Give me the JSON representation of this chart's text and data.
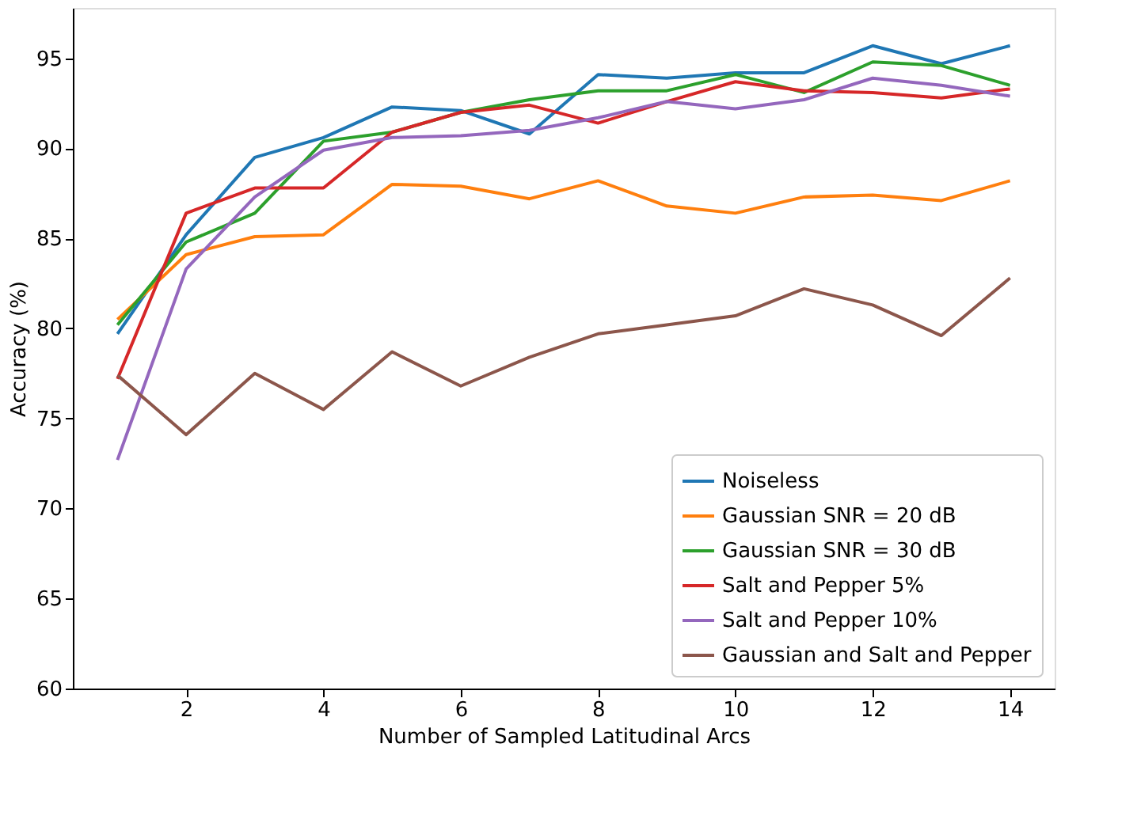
{
  "chart_data": {
    "type": "line",
    "xlabel": "Number of Sampled Latitudinal Arcs",
    "ylabel": "Accuracy (%)",
    "x": [
      1,
      2,
      3,
      4,
      5,
      6,
      7,
      8,
      9,
      10,
      11,
      12,
      13,
      14
    ],
    "xlim": [
      0.35,
      14.65
    ],
    "xticks": [
      2,
      4,
      6,
      8,
      10,
      12,
      14
    ],
    "ylim": [
      60,
      97.8
    ],
    "yticks": [
      60,
      65,
      70,
      75,
      80,
      85,
      90,
      95
    ],
    "grid": false,
    "legend": "bottom right",
    "marker": "none",
    "line_style": "solid",
    "series": [
      {
        "name": "Noiseless",
        "color": "#1f77b4",
        "values": [
          79.7,
          85.2,
          89.5,
          90.6,
          92.3,
          92.1,
          90.8,
          94.1,
          93.9,
          94.2,
          94.2,
          95.7,
          94.7,
          95.7
        ]
      },
      {
        "name": "Gaussian SNR = 20 dB",
        "color": "#ff7f0e",
        "values": [
          80.5,
          84.1,
          85.1,
          85.2,
          88.0,
          87.9,
          87.2,
          88.2,
          86.8,
          86.4,
          87.3,
          87.4,
          87.1,
          88.2
        ]
      },
      {
        "name": "Gaussian SNR = 30 dB",
        "color": "#2ca02c",
        "values": [
          80.2,
          84.8,
          86.4,
          90.4,
          90.9,
          92.0,
          92.7,
          93.2,
          93.2,
          94.1,
          93.1,
          94.8,
          94.6,
          93.5
        ]
      },
      {
        "name": "Salt and Pepper 5%",
        "color": "#d62728",
        "values": [
          77.2,
          86.4,
          87.8,
          87.8,
          90.9,
          92.0,
          92.4,
          91.4,
          92.6,
          93.7,
          93.2,
          93.1,
          92.8,
          93.3
        ]
      },
      {
        "name": "Salt and Pepper 10%",
        "color": "#9467bd",
        "values": [
          72.7,
          83.3,
          87.3,
          89.9,
          90.6,
          90.7,
          91.0,
          91.7,
          92.6,
          92.2,
          92.7,
          93.9,
          93.5,
          92.9
        ]
      },
      {
        "name": "Gaussian and Salt and Pepper",
        "color": "#8c564b",
        "values": [
          77.4,
          74.1,
          77.5,
          75.5,
          78.7,
          76.8,
          78.4,
          79.7,
          80.2,
          80.7,
          82.2,
          81.3,
          79.6,
          82.8
        ]
      }
    ]
  }
}
